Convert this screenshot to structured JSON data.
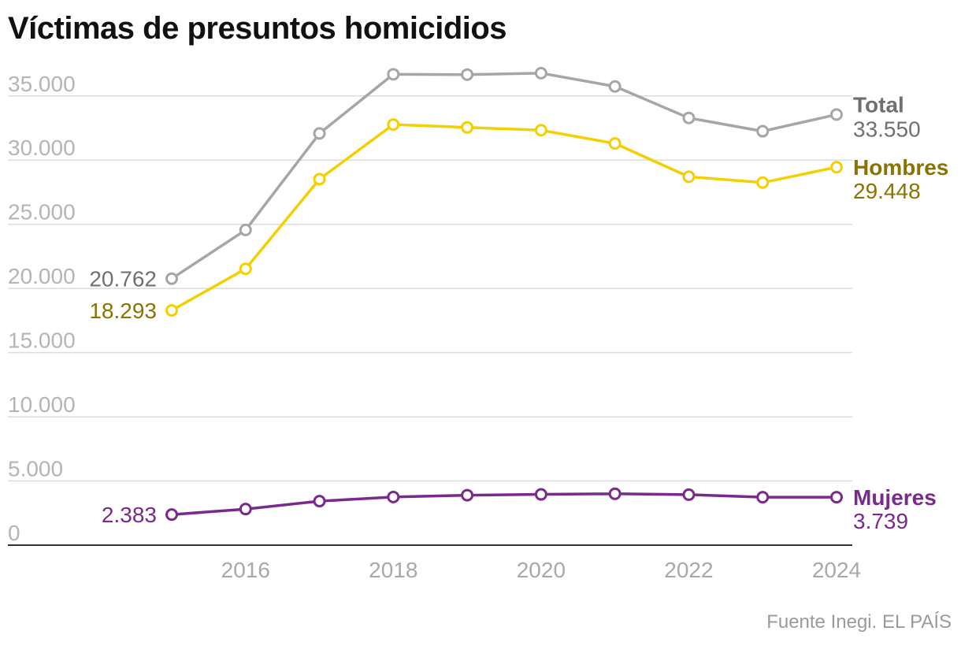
{
  "title": "Víctimas de presuntos homicidios",
  "source": "Fuente Inegi. EL PAÍS",
  "colors": {
    "total": "#a6a6a6",
    "total_label": "#707070",
    "hombres": "#f4d000",
    "hombres_label": "#8c7300",
    "mujeres": "#7a2a8c",
    "grid": "#dcdcdc",
    "axis": "#333333"
  },
  "chart_data": {
    "type": "line",
    "title": "Víctimas de presuntos homicidios",
    "xlabel": "",
    "ylabel": "",
    "ylim": [
      0,
      37000
    ],
    "xlim": [
      2015,
      2024
    ],
    "yticks": [
      0,
      5000,
      10000,
      15000,
      20000,
      25000,
      30000,
      35000
    ],
    "ytick_labels": [
      "0",
      "5.000",
      "10.000",
      "15.000",
      "20.000",
      "25.000",
      "30.000",
      "35.000"
    ],
    "xticks": [
      2016,
      2018,
      2020,
      2022,
      2024
    ],
    "xtick_labels": [
      "2016",
      "2018",
      "2020",
      "2022",
      "2024"
    ],
    "grid": true,
    "x": [
      2015,
      2016,
      2017,
      2018,
      2019,
      2020,
      2021,
      2022,
      2023,
      2024
    ],
    "series": [
      {
        "key": "total",
        "name": "Total",
        "values": [
          20762,
          24559,
          32079,
          36685,
          36661,
          36773,
          35740,
          33287,
          32252,
          33550
        ],
        "start_label": "20.762",
        "end_label": "33.550"
      },
      {
        "key": "hombres",
        "name": "Hombres",
        "values": [
          18293,
          21530,
          28520,
          32770,
          32550,
          32330,
          31300,
          28700,
          28250,
          29448
        ],
        "start_label": "18.293",
        "end_label": "29.448"
      },
      {
        "key": "mujeres",
        "name": "Mujeres",
        "values": [
          2383,
          2813,
          3430,
          3752,
          3893,
          3957,
          4003,
          3934,
          3735,
          3739
        ],
        "start_label": "2.383",
        "end_label": "3.739"
      }
    ]
  }
}
